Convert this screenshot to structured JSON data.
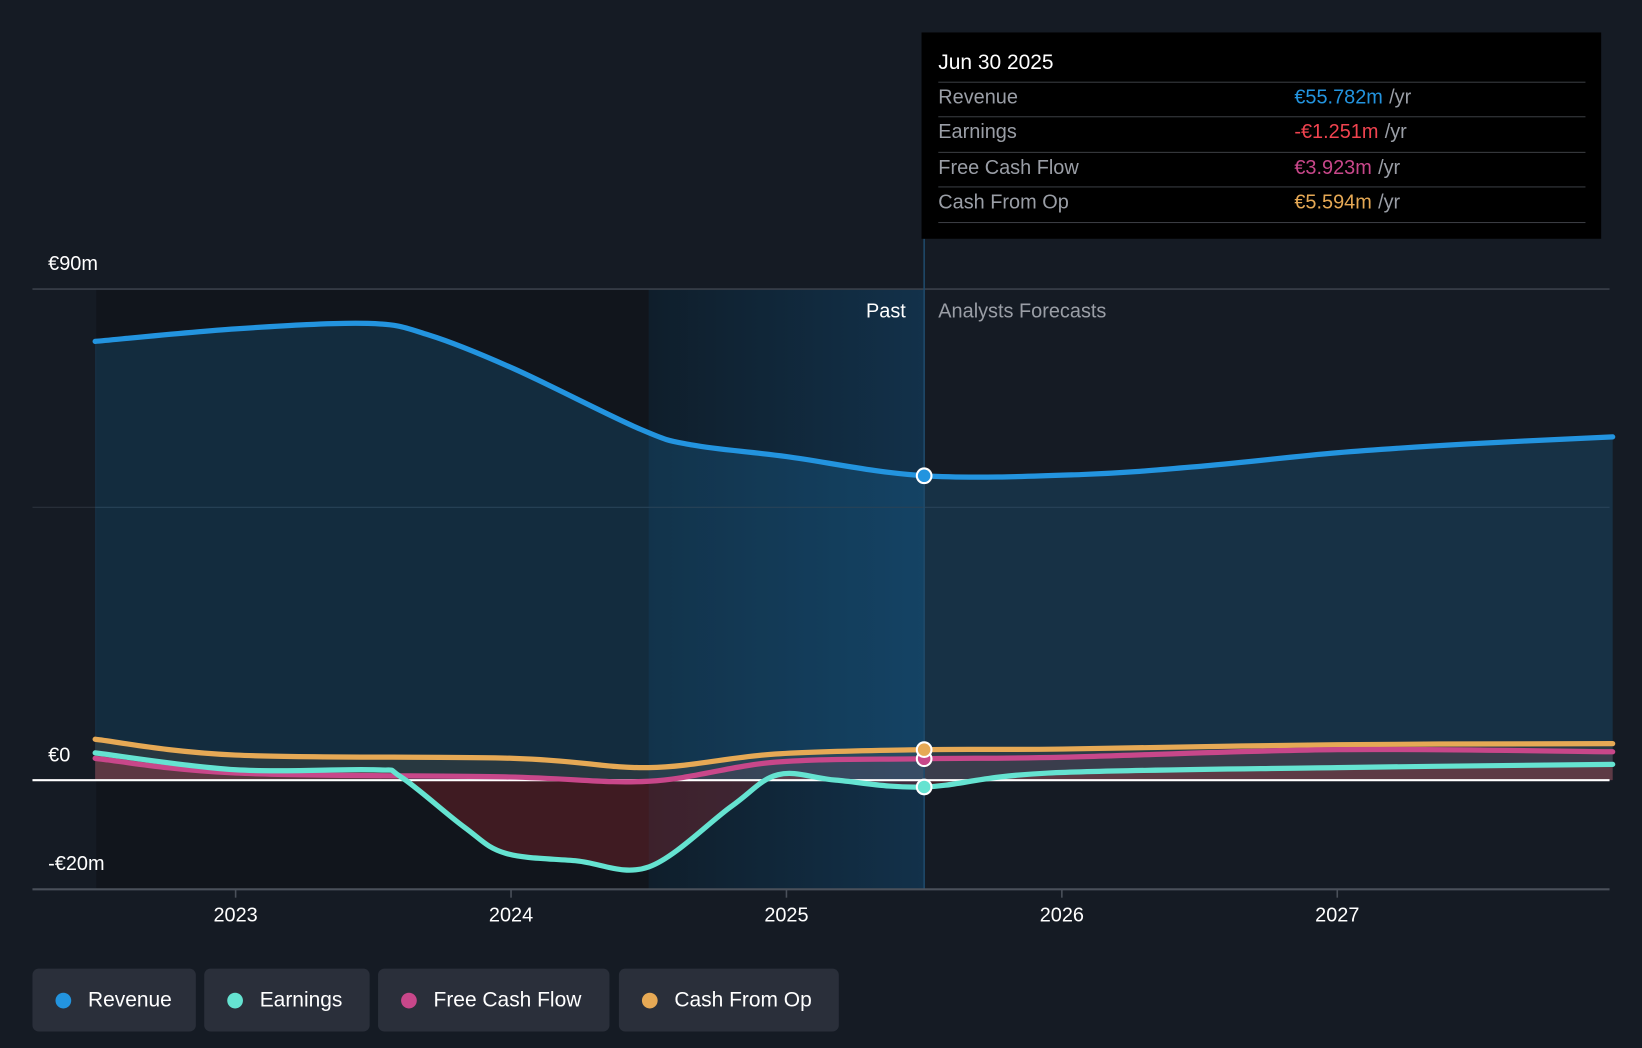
{
  "tooltip": {
    "date": "Jun 30 2025",
    "rows": [
      {
        "label": "Revenue",
        "value": "€55.782m",
        "unit": "/yr",
        "color": "#2394df"
      },
      {
        "label": "Earnings",
        "value": "-€1.251m",
        "unit": "/yr",
        "color": "#f0434f"
      },
      {
        "label": "Free Cash Flow",
        "value": "€3.923m",
        "unit": "/yr",
        "color": "#c8478a"
      },
      {
        "label": "Cash From Op",
        "value": "€5.594m",
        "unit": "/yr",
        "color": "#e6a955"
      }
    ]
  },
  "regions": {
    "past": "Past",
    "forecast": "Analysts Forecasts"
  },
  "legend": [
    {
      "label": "Revenue",
      "color": "#2394df"
    },
    {
      "label": "Earnings",
      "color": "#65e3d1"
    },
    {
      "label": "Free Cash Flow",
      "color": "#c8478a"
    },
    {
      "label": "Cash From Op",
      "color": "#e6a955"
    }
  ],
  "chart_data": {
    "type": "line",
    "title": "",
    "xlabel": "",
    "ylabel": "",
    "ylim": [
      -20,
      90
    ],
    "xlim": [
      2022.5,
      2028
    ],
    "y_tick_labels": [
      "€90m",
      "€0",
      "-€20m"
    ],
    "x_tick_labels": [
      "2023",
      "2024",
      "2025",
      "2026",
      "2027"
    ],
    "x_ticks": [
      2023,
      2024,
      2025,
      2026,
      2027
    ],
    "past_forecast_divider": 2025.5,
    "highlight_start": 2024.5,
    "series": [
      {
        "name": "Revenue",
        "color": "#2394df",
        "x": [
          2022.49,
          2023,
          2023.48,
          2023.7,
          2024.01,
          2024.47,
          2024.66,
          2025,
          2025.5,
          2026.07,
          2026.52,
          2027,
          2027.47,
          2028
        ],
        "values": [
          80.4,
          82.7,
          83.7,
          81.6,
          75.4,
          64.3,
          61.4,
          59.3,
          55.78,
          56,
          57.6,
          60,
          61.6,
          62.9
        ]
      },
      {
        "name": "Earnings",
        "color": "#65e3d1",
        "x": [
          2022.49,
          2023,
          2023.5,
          2023.6,
          2023.83,
          2023.98,
          2024.24,
          2024.5,
          2024.8,
          2024.97,
          2025.18,
          2025.5,
          2025.95,
          2027,
          2028
        ],
        "values": [
          5,
          1.9,
          1.9,
          0.6,
          -8.6,
          -13.4,
          -14.8,
          -15.9,
          -4.8,
          1,
          0,
          -1.251,
          1.3,
          2.3,
          2.9
        ]
      },
      {
        "name": "Free Cash Flow",
        "color": "#c8478a",
        "x": [
          2022.49,
          2023,
          2023.98,
          2024.5,
          2024.96,
          2025.5,
          2026,
          2027,
          2028
        ],
        "values": [
          4,
          1.3,
          0.6,
          -0.2,
          3.3,
          3.923,
          4.2,
          5.6,
          5.2
        ]
      },
      {
        "name": "Cash From Op",
        "color": "#e6a955",
        "x": [
          2022.49,
          2023,
          2024.01,
          2024.5,
          2024.96,
          2025.5,
          2026,
          2027,
          2028
        ],
        "values": [
          7.5,
          4.6,
          4,
          2.3,
          4.8,
          5.594,
          5.7,
          6.5,
          6.7
        ]
      }
    ]
  }
}
